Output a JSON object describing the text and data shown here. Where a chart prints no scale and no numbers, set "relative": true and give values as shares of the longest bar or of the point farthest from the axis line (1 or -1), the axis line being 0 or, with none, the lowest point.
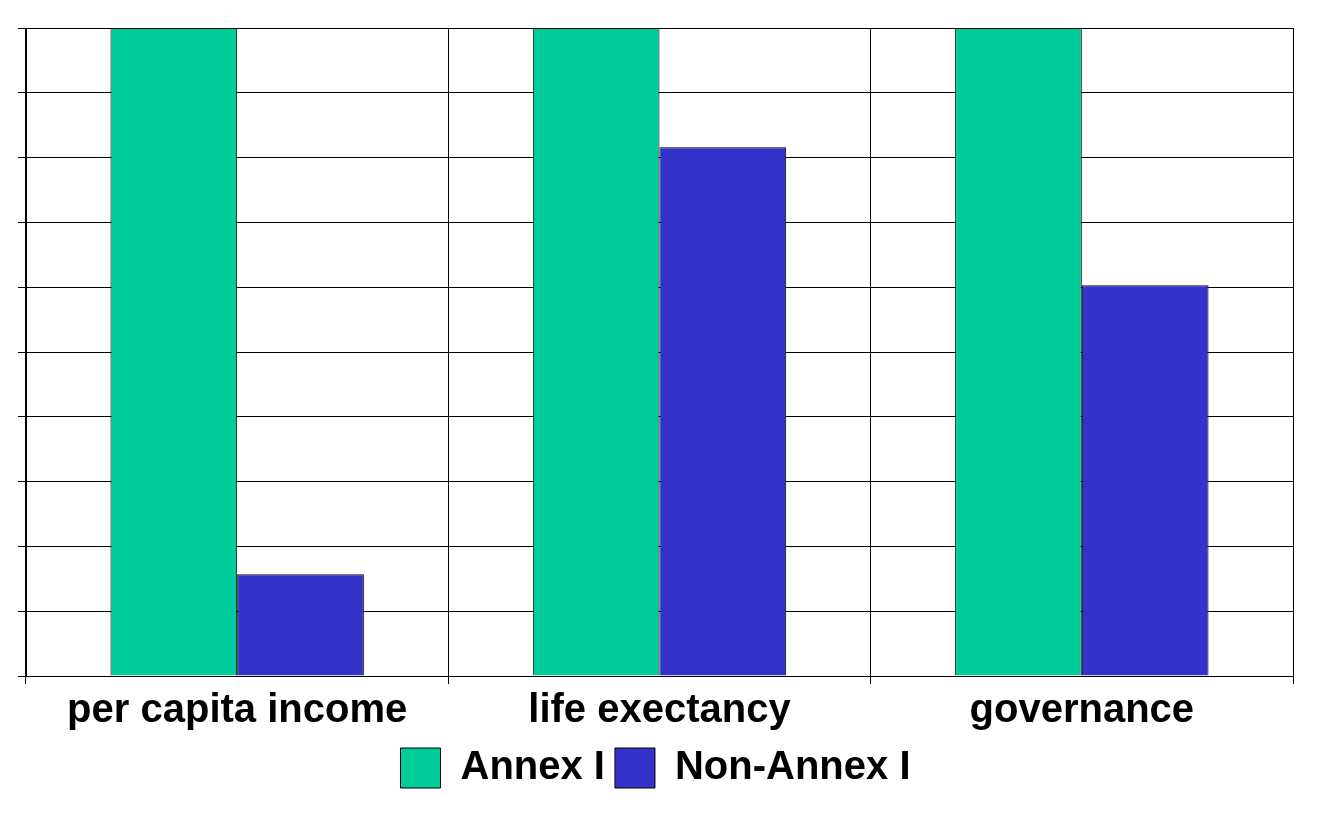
{
  "chart_data": {
    "type": "bar",
    "relative": true,
    "categories": [
      "per capita income",
      "life exectancy",
      "governance"
    ],
    "series": [
      {
        "name": "Annex I",
        "color": "#00cc99",
        "values": [
          1,
          1,
          1
        ]
      },
      {
        "name": "Non-Annex I",
        "color": "#3333cc",
        "values": [
          0.157,
          0.816,
          0.603
        ]
      }
    ],
    "grid": true,
    "legend": "bottom"
  }
}
